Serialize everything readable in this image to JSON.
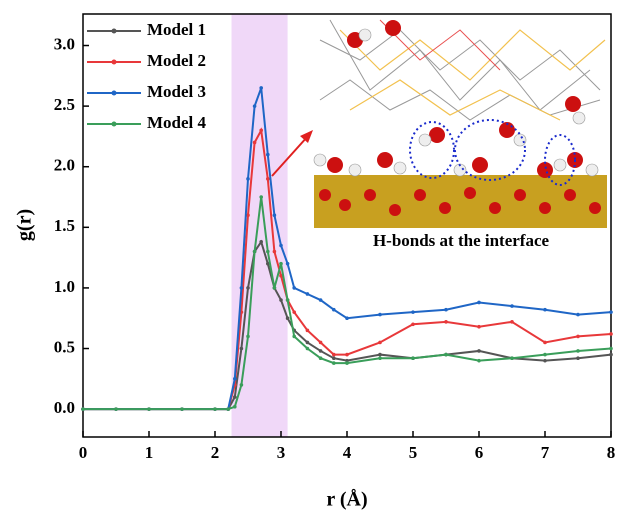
{
  "chart_data": {
    "type": "line",
    "x_label": "r (Å)",
    "y_label": "g(r)",
    "x": [
      0,
      0.5,
      1,
      1.5,
      2,
      2.2,
      2.3,
      2.4,
      2.5,
      2.6,
      2.7,
      2.8,
      2.9,
      3.0,
      3.1,
      3.2,
      3.4,
      3.6,
      3.8,
      4.0,
      4.5,
      5,
      5.5,
      6,
      6.5,
      7,
      7.5,
      8
    ],
    "series": [
      {
        "name": "Model 1",
        "color": "#555555",
        "values": [
          0,
          0,
          0,
          0,
          0,
          0,
          0.1,
          0.5,
          1.0,
          1.3,
          1.38,
          1.2,
          1.0,
          0.9,
          0.75,
          0.65,
          0.55,
          0.48,
          0.42,
          0.4,
          0.45,
          0.42,
          0.45,
          0.48,
          0.42,
          0.4,
          0.42,
          0.45
        ]
      },
      {
        "name": "Model 2",
        "color": "#e8383a",
        "values": [
          0,
          0,
          0,
          0,
          0,
          0,
          0.2,
          0.8,
          1.6,
          2.2,
          2.3,
          1.9,
          1.3,
          1.1,
          0.9,
          0.8,
          0.65,
          0.55,
          0.45,
          0.45,
          0.55,
          0.7,
          0.72,
          0.68,
          0.72,
          0.55,
          0.6,
          0.62
        ]
      },
      {
        "name": "Model 3",
        "color": "#1f66c6",
        "values": [
          0,
          0,
          0,
          0,
          0,
          0,
          0.25,
          1.0,
          1.9,
          2.5,
          2.65,
          2.1,
          1.6,
          1.35,
          1.2,
          1.0,
          0.95,
          0.9,
          0.82,
          0.75,
          0.78,
          0.8,
          0.82,
          0.88,
          0.85,
          0.82,
          0.78,
          0.8
        ]
      },
      {
        "name": "Model 4",
        "color": "#3a9e5a",
        "values": [
          0,
          0,
          0,
          0,
          0,
          0,
          0.02,
          0.2,
          0.6,
          1.3,
          1.75,
          1.3,
          1.0,
          1.2,
          0.9,
          0.6,
          0.5,
          0.42,
          0.38,
          0.38,
          0.42,
          0.42,
          0.45,
          0.4,
          0.42,
          0.45,
          0.48,
          0.5
        ]
      }
    ],
    "xlim": [
      0,
      8
    ],
    "xticks": [
      0,
      1,
      2,
      3,
      4,
      5,
      6,
      7,
      8
    ],
    "ylim": [
      -0.23,
      3.26
    ],
    "yticks": [
      {
        "value": 0,
        "label": "0.0"
      },
      {
        "value": 0.5,
        "label": "0.5"
      },
      {
        "value": 1,
        "label": "1.0"
      },
      {
        "value": 1.5,
        "label": "1.5"
      },
      {
        "value": 2,
        "label": "2.0"
      },
      {
        "value": 2.5,
        "label": "2.5"
      },
      {
        "value": 3,
        "label": "3.0"
      }
    ],
    "shaded_span": [
      2.25,
      3.1
    ],
    "shaded_color": "#f0d8f8",
    "inset_caption": "H-bonds at the interface"
  }
}
